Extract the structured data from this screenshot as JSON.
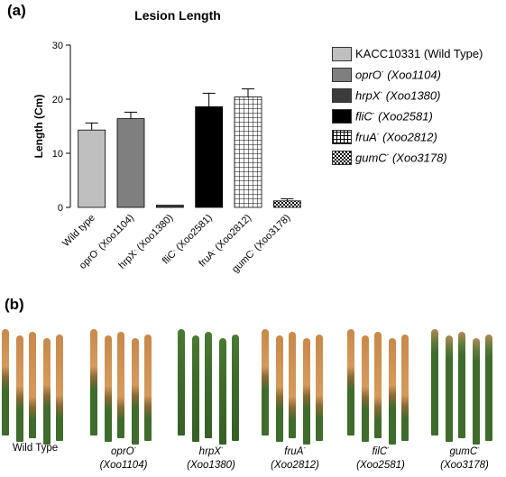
{
  "panel_a_label": "(a)",
  "panel_b_label": "(b)",
  "colors": {
    "wild_type": "#bfbfbf",
    "oprO": "#7f7f7f",
    "hrpX": "#3c3c3c",
    "fliC": "#000000",
    "fruA": "grid",
    "gumC": "checker",
    "leaf_green": "#3f6b2c",
    "leaf_brown": "#c8894b"
  },
  "chart_data": {
    "type": "bar",
    "title": "Lesion Length",
    "ylabel": "Length (Cm)",
    "xlabel": "",
    "ylim": [
      0,
      30
    ],
    "yticks": [
      "0",
      "10",
      "20",
      "30"
    ],
    "categories": [
      {
        "base": "Wild type",
        "sup": "",
        "strain": ""
      },
      {
        "base": "oprO",
        "sup": "-",
        "strain": " (Xoo1104)"
      },
      {
        "base": "hrpX",
        "sup": "-",
        "strain": " (Xoo1380)"
      },
      {
        "base": "fliC",
        "sup": "-",
        "strain": " (Xoo2581)"
      },
      {
        "base": "fruA",
        "sup": "-",
        "strain": " (Xoo2812)"
      },
      {
        "base": "gumC",
        "sup": "-",
        "strain": " (Xoo3178)"
      }
    ],
    "values": [
      14.3,
      16.4,
      0.4,
      18.6,
      20.4,
      1.2
    ],
    "errors": [
      1.3,
      1.2,
      0.0,
      2.5,
      1.5,
      0.4
    ],
    "fills": [
      "#bfbfbf",
      "#7f7f7f",
      "#3c3c3c",
      "#000000",
      "url(#gridPat)",
      "url(#checkPat)"
    ],
    "legend_position": "right",
    "grid": false
  },
  "legend": [
    {
      "name": "KACC10331",
      "sup": "",
      "strain": " (Wild Type)",
      "italic": false,
      "fill": "#bfbfbf"
    },
    {
      "name": "oprO",
      "sup": "-",
      "strain": " (Xoo1104)",
      "italic": true,
      "fill": "#7f7f7f"
    },
    {
      "name": "hrpX",
      "sup": "-",
      "strain": " (Xoo1380)",
      "italic": true,
      "fill": "#3c3c3c"
    },
    {
      "name": "fliC",
      "sup": "-",
      "strain": " (Xoo2581)",
      "italic": true,
      "fill": "#000000"
    },
    {
      "name": "fruA",
      "sup": "-",
      "strain": " (Xoo2812)",
      "italic": true,
      "fill": "grid"
    },
    {
      "name": "gumC",
      "sup": "-",
      "strain": " (Xoo3178)",
      "italic": true,
      "fill": "checker"
    }
  ],
  "leaf_groups": [
    {
      "name": "Wild Type",
      "sup": "",
      "strain": "",
      "italic": false,
      "infection": "high"
    },
    {
      "name": "oprO",
      "sup": "-",
      "strain": "(Xoo1104)",
      "italic": true,
      "infection": "high"
    },
    {
      "name": "hrpX",
      "sup": "-",
      "strain": "(Xoo1380)",
      "italic": true,
      "infection": "none"
    },
    {
      "name": "fruA",
      "sup": "-",
      "strain": "(Xoo2812)",
      "italic": true,
      "infection": "high"
    },
    {
      "name": "filC",
      "sup": "-",
      "strain": "(Xoo2581)",
      "italic": true,
      "infection": "high"
    },
    {
      "name": "gumC",
      "sup": "-",
      "strain": "(Xoo3178)",
      "italic": true,
      "infection": "low"
    }
  ]
}
